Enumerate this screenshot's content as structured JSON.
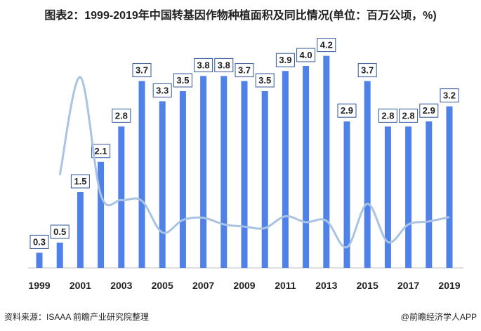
{
  "title": "图表2：1999-2019年中国转基因作物种植面积及同比情况(单位：百万公顷，%)",
  "source": "资料来源：ISAAA 前瞻产业研究院整理",
  "brand": "@前瞻经济学人APP",
  "colors": {
    "bar": "#4f81e8",
    "line": "#a9c3e3",
    "label_border": "#2f5597"
  },
  "chart_data": {
    "type": "bar+line",
    "categories": [
      "1999",
      "2000",
      "2001",
      "2002",
      "2003",
      "2004",
      "2005",
      "2006",
      "2007",
      "2008",
      "2009",
      "2010",
      "2011",
      "2012",
      "2013",
      "2014",
      "2015",
      "2016",
      "2017",
      "2018",
      "2019"
    ],
    "tick_labels": [
      "1999",
      "2001",
      "2003",
      "2005",
      "2007",
      "2009",
      "2011",
      "2013",
      "2015",
      "2017",
      "2019"
    ],
    "series": [
      {
        "type": "bar",
        "values": [
          0.3,
          0.5,
          1.5,
          2.1,
          2.8,
          3.7,
          3.3,
          3.5,
          3.8,
          3.8,
          3.7,
          3.5,
          3.9,
          4.0,
          4.2,
          2.9,
          3.7,
          2.8,
          2.8,
          2.9,
          3.2
        ],
        "labels": [
          "0.3",
          "0.5",
          "1.5",
          "2.1",
          "2.8",
          "3.7",
          "3.3",
          "3.5",
          "3.8",
          "3.8",
          "3.7",
          "3.5",
          "3.9",
          "4.0",
          "4.2",
          "2.9",
          "3.7",
          "2.8",
          "2.8",
          "2.9",
          "3.2"
        ]
      },
      {
        "type": "line",
        "values": [
          null,
          67,
          200,
          40,
          33,
          32,
          -11,
          6,
          9,
          0,
          -3,
          -5,
          11,
          3,
          5,
          -31,
          28,
          -24,
          0,
          4,
          10
        ]
      }
    ],
    "grid": false,
    "legend": "none"
  }
}
